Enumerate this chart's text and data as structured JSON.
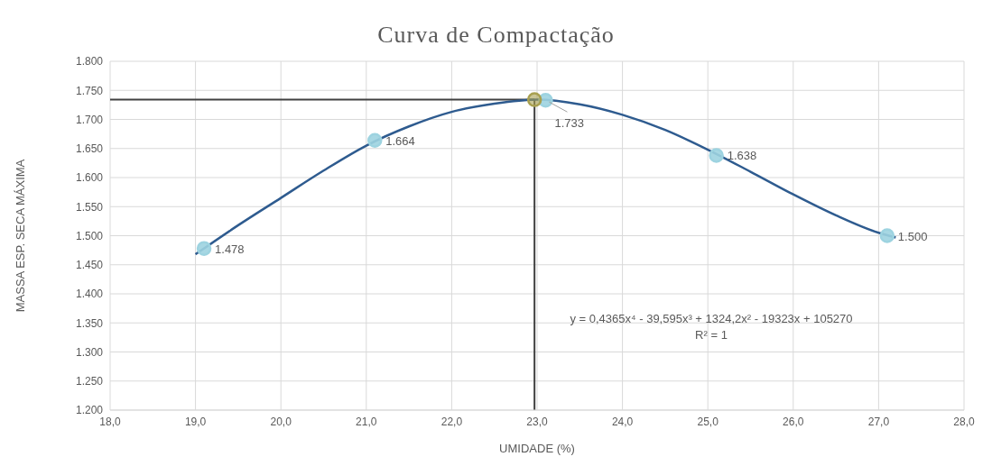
{
  "chart_data": {
    "type": "scatter",
    "title": "Curva de Compactação",
    "xlabel": "UMIDADE (%)",
    "ylabel": "MASSA ESP. SECA MÁXIMA",
    "xlim": [
      18,
      28
    ],
    "ylim": [
      1200,
      1800
    ],
    "xticks": [
      {
        "value": 18,
        "label": "18,0"
      },
      {
        "value": 19,
        "label": "19,0"
      },
      {
        "value": 20,
        "label": "20,0"
      },
      {
        "value": 21,
        "label": "21,0"
      },
      {
        "value": 22,
        "label": "22,0"
      },
      {
        "value": 23,
        "label": "23,0"
      },
      {
        "value": 24,
        "label": "24,0"
      },
      {
        "value": 25,
        "label": "25,0"
      },
      {
        "value": 26,
        "label": "26,0"
      },
      {
        "value": 27,
        "label": "27,0"
      },
      {
        "value": 28,
        "label": "28,0"
      }
    ],
    "yticks": [
      {
        "value": 1200,
        "label": "1.200"
      },
      {
        "value": 1250,
        "label": "1.250"
      },
      {
        "value": 1300,
        "label": "1.300"
      },
      {
        "value": 1350,
        "label": "1.350"
      },
      {
        "value": 1400,
        "label": "1.400"
      },
      {
        "value": 1450,
        "label": "1.450"
      },
      {
        "value": 1500,
        "label": "1.500"
      },
      {
        "value": 1550,
        "label": "1.550"
      },
      {
        "value": 1600,
        "label": "1.600"
      },
      {
        "value": 1650,
        "label": "1.650"
      },
      {
        "value": 1700,
        "label": "1.700"
      },
      {
        "value": 1750,
        "label": "1.750"
      },
      {
        "value": 1800,
        "label": "1.800"
      }
    ],
    "grid": true,
    "legend": false,
    "series": [
      {
        "marker": "circle",
        "color": "#9dd3e0",
        "x": [
          19.1,
          21.1,
          23.1,
          25.1,
          27.1
        ],
        "values": [
          1478,
          1664,
          1733,
          1638,
          1500
        ],
        "value_labels": [
          "1.478",
          "1.664",
          "1.733",
          "1.638",
          "1.500"
        ]
      },
      {
        "type": "line",
        "marker": "none",
        "line_style": "solid",
        "color": "#2e5b8f",
        "x": [
          19.0,
          19.5,
          20.0,
          20.5,
          21.0,
          21.5,
          22.0,
          22.5,
          23.0,
          23.5,
          24.0,
          24.5,
          25.0,
          25.5,
          26.0,
          26.5,
          27.0,
          27.2
        ],
        "values": [
          1468,
          1518,
          1565,
          1612,
          1655,
          1688,
          1713,
          1727,
          1734,
          1726,
          1708,
          1682,
          1648,
          1610,
          1571,
          1535,
          1505,
          1497
        ]
      },
      {
        "type": "scatter",
        "marker": "circle",
        "color": "#a8a050",
        "x": [
          22.97
        ],
        "values": [
          1734
        ]
      }
    ],
    "ref_lines": [
      {
        "axis": "x",
        "value": 22.97,
        "color": "#404040"
      },
      {
        "axis": "y",
        "value": 1734,
        "color": "#404040"
      }
    ],
    "annotations": [
      "y = 0,4365x⁴ - 39,595x³ + 1324,2x² - 19323x + 105270",
      "R² = 1"
    ]
  }
}
